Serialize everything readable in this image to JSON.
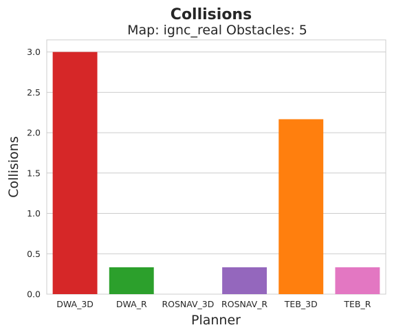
{
  "chart_data": {
    "type": "bar",
    "suptitle": "Collisions",
    "title": "Map: ignc_real Obstacles: 5",
    "xlabel": "Planner",
    "ylabel": "Collisions",
    "categories": [
      "DWA_3D",
      "DWA_R",
      "ROSNAV_3D",
      "ROSNAV_R",
      "TEB_3D",
      "TEB_R"
    ],
    "values": [
      3.0,
      0.333,
      0.0,
      0.333,
      2.167,
      0.333
    ],
    "colors": [
      "#d62728",
      "#2ca02c",
      "#1f77b4",
      "#9467bd",
      "#ff7f0e",
      "#e377c2"
    ],
    "ylim": [
      0,
      3.15
    ],
    "yticks": [
      "0.0",
      "0.5",
      "1.0",
      "1.5",
      "2.0",
      "2.5",
      "3.0"
    ],
    "grid": "horizontal",
    "legend": "none"
  }
}
